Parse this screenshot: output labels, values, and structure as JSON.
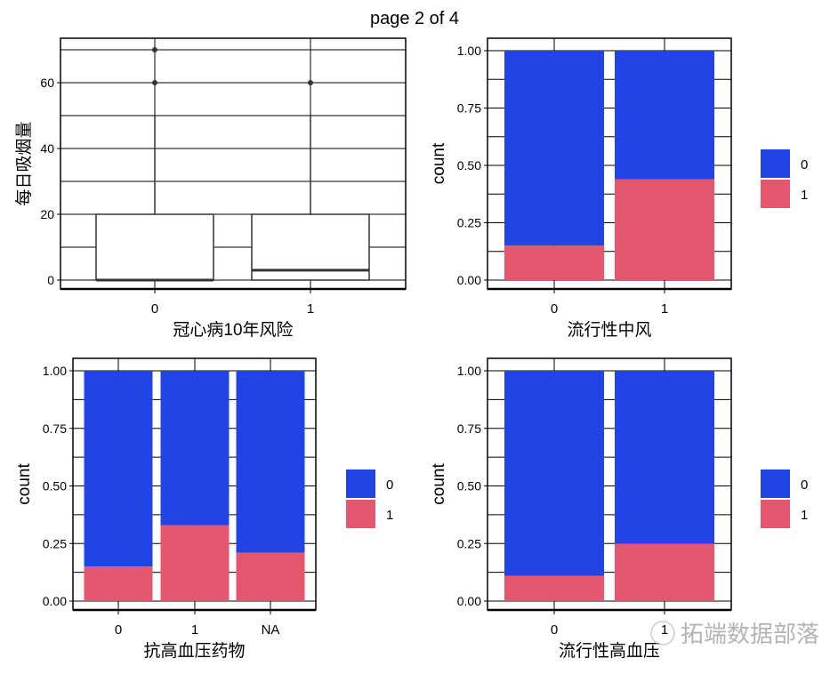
{
  "page_title": "page 2 of 4",
  "watermark": "拓端数据部落",
  "colors": {
    "0": "#2244e6",
    "1": "#e5566f",
    "grid": "#000000",
    "box": "#333333"
  },
  "chart_data": [
    {
      "type": "boxplot",
      "xlabel": "冠心病10年风险",
      "ylabel": "每日吸烟量",
      "categories": [
        "0",
        "1"
      ],
      "yticks": [
        "0",
        "20",
        "40",
        "60"
      ],
      "ylim": [
        -4,
        73
      ],
      "grid": true,
      "boxes": [
        {
          "category": "0",
          "min": 0,
          "q1": 0,
          "median": 0,
          "q3": 20,
          "max": 50,
          "outliers": [
            60,
            70
          ]
        },
        {
          "category": "1",
          "min": 0,
          "q1": 0,
          "median": 3,
          "q3": 20,
          "max": 50,
          "outliers": [
            60
          ]
        }
      ]
    },
    {
      "type": "bar",
      "stacked": true,
      "xlabel": "流行性中风",
      "ylabel": "count",
      "categories": [
        "0",
        "1"
      ],
      "yticks": [
        "0.00",
        "0.25",
        "0.50",
        "0.75",
        "1.00"
      ],
      "ylim": [
        0,
        1
      ],
      "legend": {
        "placement": "right",
        "entries": [
          "0",
          "1"
        ]
      },
      "series": [
        {
          "name": "1",
          "values": [
            0.15,
            0.44
          ]
        },
        {
          "name": "0",
          "values": [
            0.85,
            0.56
          ]
        }
      ]
    },
    {
      "type": "bar",
      "stacked": true,
      "xlabel": "抗高血压药物",
      "ylabel": "count",
      "categories": [
        "0",
        "1",
        "NA"
      ],
      "yticks": [
        "0.00",
        "0.25",
        "0.50",
        "0.75",
        "1.00"
      ],
      "ylim": [
        0,
        1
      ],
      "legend": {
        "placement": "right",
        "entries": [
          "0",
          "1"
        ]
      },
      "series": [
        {
          "name": "1",
          "values": [
            0.15,
            0.33,
            0.21
          ]
        },
        {
          "name": "0",
          "values": [
            0.85,
            0.67,
            0.79
          ]
        }
      ]
    },
    {
      "type": "bar",
      "stacked": true,
      "xlabel": "流行性高血压",
      "ylabel": "count",
      "categories": [
        "0",
        "1"
      ],
      "yticks": [
        "0.00",
        "0.25",
        "0.50",
        "0.75",
        "1.00"
      ],
      "ylim": [
        0,
        1
      ],
      "legend": {
        "placement": "right",
        "entries": [
          "0",
          "1"
        ]
      },
      "series": [
        {
          "name": "1",
          "values": [
            0.11,
            0.25
          ]
        },
        {
          "name": "0",
          "values": [
            0.89,
            0.75
          ]
        }
      ]
    }
  ]
}
